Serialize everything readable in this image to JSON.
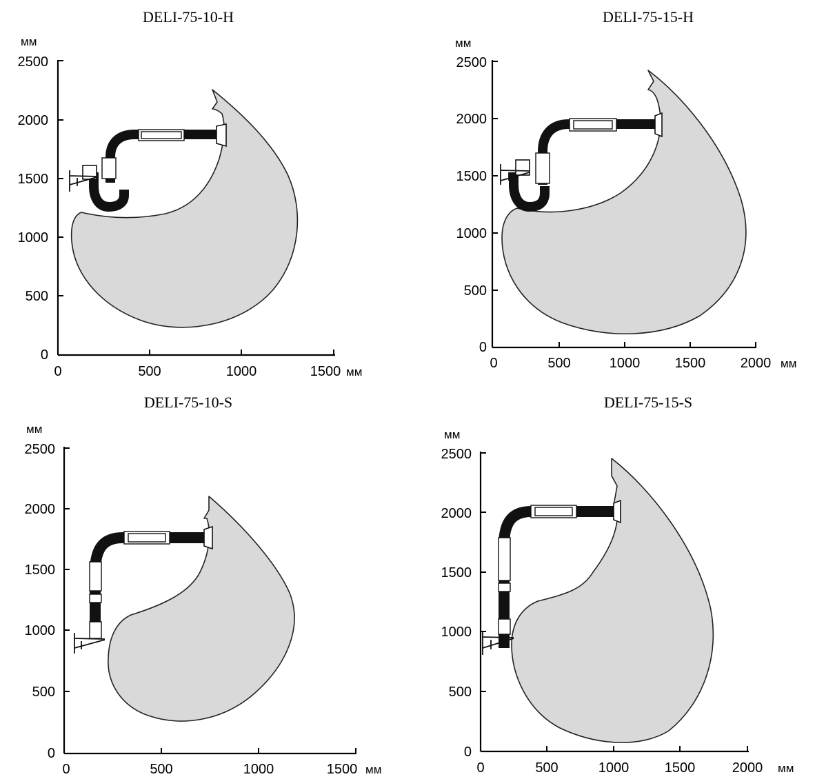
{
  "panels": [
    {
      "id": "p1",
      "title": "DELI-75-10-H",
      "x_ticks": [
        "0",
        "500",
        "1000",
        "1500"
      ],
      "y_ticks": [
        "0",
        "500",
        "1000",
        "1500",
        "2000",
        "2500"
      ],
      "x_unit": "мм",
      "y_unit": "мм"
    },
    {
      "id": "p2",
      "title": "DELI-75-15-H",
      "x_ticks": [
        "0",
        "500",
        "1000",
        "1500",
        "2000"
      ],
      "y_ticks": [
        "0",
        "500",
        "1000",
        "1500",
        "2000",
        "2500"
      ],
      "x_unit": "мм",
      "y_unit": "мм"
    },
    {
      "id": "p3",
      "title": "DELI-75-10-S",
      "x_ticks": [
        "0",
        "500",
        "1000",
        "1500"
      ],
      "y_ticks": [
        "0",
        "500",
        "1000",
        "1500",
        "2000",
        "2500"
      ],
      "x_unit": "мм",
      "y_unit": "мм"
    },
    {
      "id": "p4",
      "title": "DELI-75-15-S",
      "x_ticks": [
        "0",
        "500",
        "1000",
        "1500",
        "2000"
      ],
      "y_ticks": [
        "0",
        "500",
        "1000",
        "1500",
        "2000",
        "2500"
      ],
      "x_unit": "мм",
      "y_unit": "мм"
    }
  ],
  "colors": {
    "envelope_fill": "#d9d9d9",
    "outline": "#222222",
    "hose": "#111111"
  }
}
